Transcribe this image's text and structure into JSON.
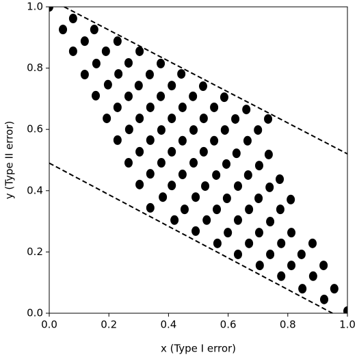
{
  "chart_data": {
    "type": "scatter",
    "x_label": "x (Type I error)",
    "y_label": "y (Type II error)",
    "color": "#000000",
    "x": [
      0,
      0.046,
      0.08,
      0.08,
      0.119,
      0.151,
      0.119,
      0.158,
      0.19,
      0.229,
      0.156,
      0.197,
      0.232,
      0.266,
      0.303,
      0.193,
      0.229,
      0.266,
      0.3,
      0.337,
      0.374,
      0.229,
      0.268,
      0.303,
      0.339,
      0.374,
      0.411,
      0.443,
      0.266,
      0.303,
      0.339,
      0.376,
      0.411,
      0.447,
      0.482,
      0.516,
      0.303,
      0.339,
      0.376,
      0.411,
      0.447,
      0.484,
      0.518,
      0.553,
      0.587,
      0.339,
      0.381,
      0.411,
      0.447,
      0.484,
      0.518,
      0.553,
      0.589,
      0.624,
      0.661,
      0.42,
      0.454,
      0.491,
      0.523,
      0.56,
      0.594,
      0.628,
      0.665,
      0.7,
      0.734,
      0.491,
      0.528,
      0.562,
      0.596,
      0.633,
      0.667,
      0.704,
      0.736,
      0.564,
      0.599,
      0.633,
      0.67,
      0.702,
      0.739,
      0.773,
      0.633,
      0.67,
      0.704,
      0.741,
      0.775,
      0.81,
      0.706,
      0.741,
      0.778,
      0.812,
      0.778,
      0.812,
      0.846,
      0.883,
      0.849,
      0.885,
      0.92,
      0.922,
      0.956,
      1.0
    ],
    "values": [
      1.0,
      0.926,
      0.962,
      0.855,
      0.888,
      0.926,
      0.779,
      0.815,
      0.855,
      0.888,
      0.71,
      0.746,
      0.781,
      0.817,
      0.855,
      0.636,
      0.672,
      0.708,
      0.743,
      0.779,
      0.815,
      0.565,
      0.6,
      0.636,
      0.672,
      0.708,
      0.743,
      0.781,
      0.491,
      0.527,
      0.565,
      0.598,
      0.636,
      0.672,
      0.708,
      0.741,
      0.42,
      0.455,
      0.491,
      0.527,
      0.563,
      0.598,
      0.636,
      0.672,
      0.705,
      0.344,
      0.379,
      0.417,
      0.453,
      0.491,
      0.527,
      0.563,
      0.598,
      0.634,
      0.665,
      0.304,
      0.339,
      0.379,
      0.415,
      0.451,
      0.487,
      0.522,
      0.563,
      0.598,
      0.634,
      0.268,
      0.304,
      0.339,
      0.375,
      0.415,
      0.451,
      0.482,
      0.518,
      0.228,
      0.263,
      0.304,
      0.339,
      0.375,
      0.411,
      0.4375,
      0.192,
      0.228,
      0.263,
      0.299,
      0.339,
      0.371,
      0.156,
      0.192,
      0.228,
      0.263,
      0.121,
      0.156,
      0.192,
      0.228,
      0.08,
      0.121,
      0.156,
      0.045,
      0.08,
      0.007
    ],
    "reference_lines": [
      {
        "x": [
          0.05,
          1.0
        ],
        "y": [
          1.0,
          0.52
        ]
      },
      {
        "x": [
          0,
          0.95
        ],
        "y": [
          0.49,
          0
        ]
      }
    ],
    "xlim": [
      0,
      1
    ],
    "ylim": [
      0,
      1
    ],
    "xticks": [
      {
        "value": 0,
        "label": "0.0"
      },
      {
        "value": 0.2,
        "label": "0.2"
      },
      {
        "value": 0.4,
        "label": "0.4"
      },
      {
        "value": 0.6,
        "label": "0.6"
      },
      {
        "value": 0.8,
        "label": "0.8"
      },
      {
        "value": 1,
        "label": "1.0"
      }
    ],
    "yticks": [
      {
        "value": 0,
        "label": "0.0"
      },
      {
        "value": 0.2,
        "label": "0.2"
      },
      {
        "value": 0.4,
        "label": "0.4"
      },
      {
        "value": 0.6,
        "label": "0.6"
      },
      {
        "value": 0.8,
        "label": "0.8"
      },
      {
        "value": 1,
        "label": "1.0"
      }
    ],
    "grid": false
  }
}
